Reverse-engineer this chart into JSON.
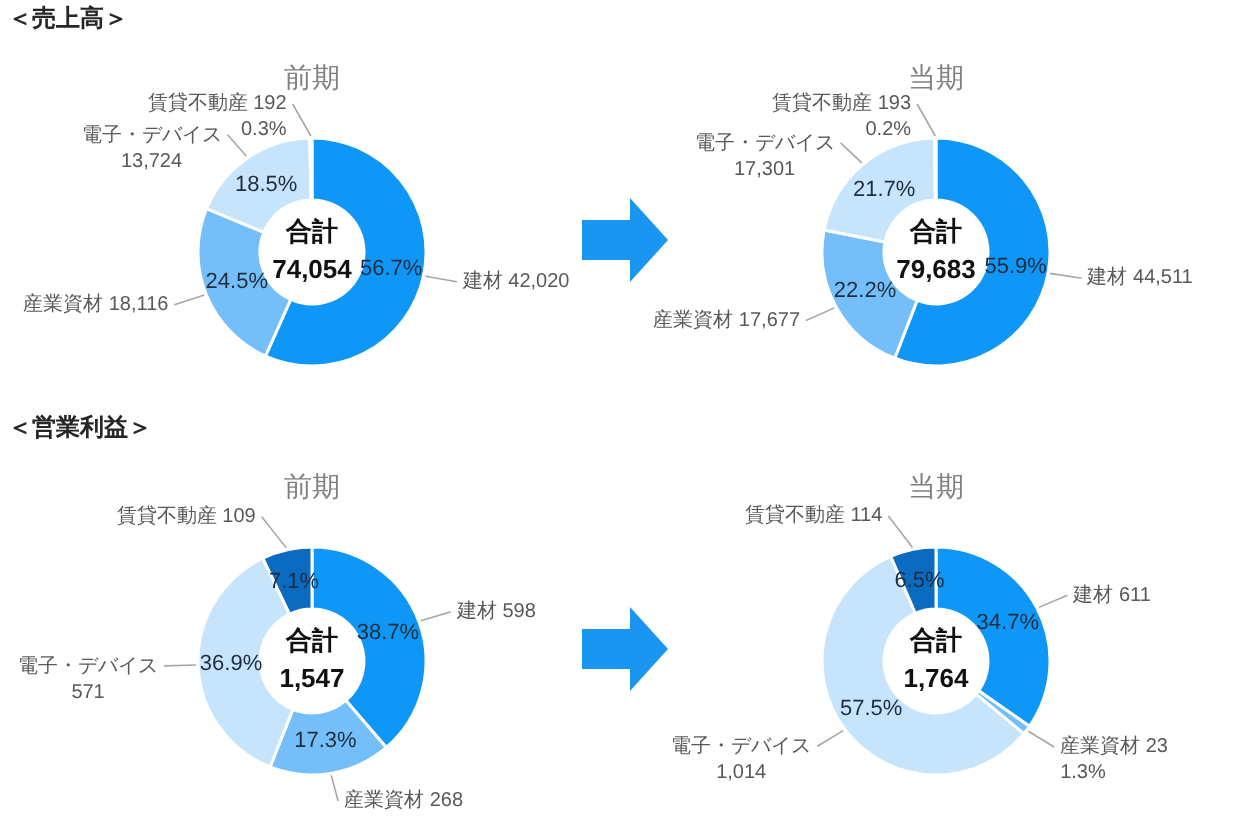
{
  "chart_data": [
    {
      "type": "other",
      "title": "＜売上高＞"
    },
    {
      "type": "donut",
      "title": "前期",
      "categories": [
        "建材 42,020",
        "産業資材 18,116",
        "電子・デバイス 13,724",
        "賃貸不動産 192"
      ],
      "values": [
        56.7,
        24.5,
        18.5,
        0.3
      ],
      "colors": [
        "#0f97f7",
        "#74bffa",
        "#c6e5fd",
        "#0b6bc1"
      ],
      "value_labels": [
        "56.7%",
        "24.5%",
        "18.5%",
        "0.3%"
      ],
      "annotations": [
        "合計",
        "74,054"
      ]
    },
    {
      "type": "donut",
      "title": "当期",
      "categories": [
        "建材 44,511",
        "産業資材 17,677",
        "電子・デバイス 17,301",
        "賃貸不動産 193"
      ],
      "values": [
        55.9,
        22.2,
        21.7,
        0.2
      ],
      "colors": [
        "#0f97f7",
        "#74bffa",
        "#c6e5fd",
        "#0b6bc1"
      ],
      "value_labels": [
        "55.9%",
        "22.2%",
        "21.7%",
        "0.2%"
      ],
      "annotations": [
        "合計",
        "79,683"
      ]
    },
    {
      "type": "other",
      "title": "＜営業利益＞"
    },
    {
      "type": "donut",
      "title": "前期",
      "categories": [
        "建材 598",
        "産業資材 268",
        "電子・デバイス 571",
        "賃貸不動産 109"
      ],
      "values": [
        38.7,
        17.3,
        36.9,
        7.1
      ],
      "colors": [
        "#0f97f7",
        "#74bffa",
        "#c6e5fd",
        "#0b6bc1"
      ],
      "value_labels": [
        "38.7%",
        "17.3%",
        "36.9%",
        "7.1%"
      ],
      "annotations": [
        "合計",
        "1,547"
      ]
    },
    {
      "type": "donut",
      "title": "当期",
      "categories": [
        "建材 611",
        "産業資材 23",
        "電子・デバイス 1,014",
        "賃貸不動産 114"
      ],
      "values": [
        34.7,
        1.3,
        57.5,
        6.5
      ],
      "colors": [
        "#0f97f7",
        "#74bffa",
        "#c6e5fd",
        "#0b6bc1"
      ],
      "value_labels": [
        "34.7%",
        "1.3%",
        "57.5%",
        "6.5%"
      ],
      "annotations": [
        "合計",
        "1,764"
      ]
    }
  ]
}
